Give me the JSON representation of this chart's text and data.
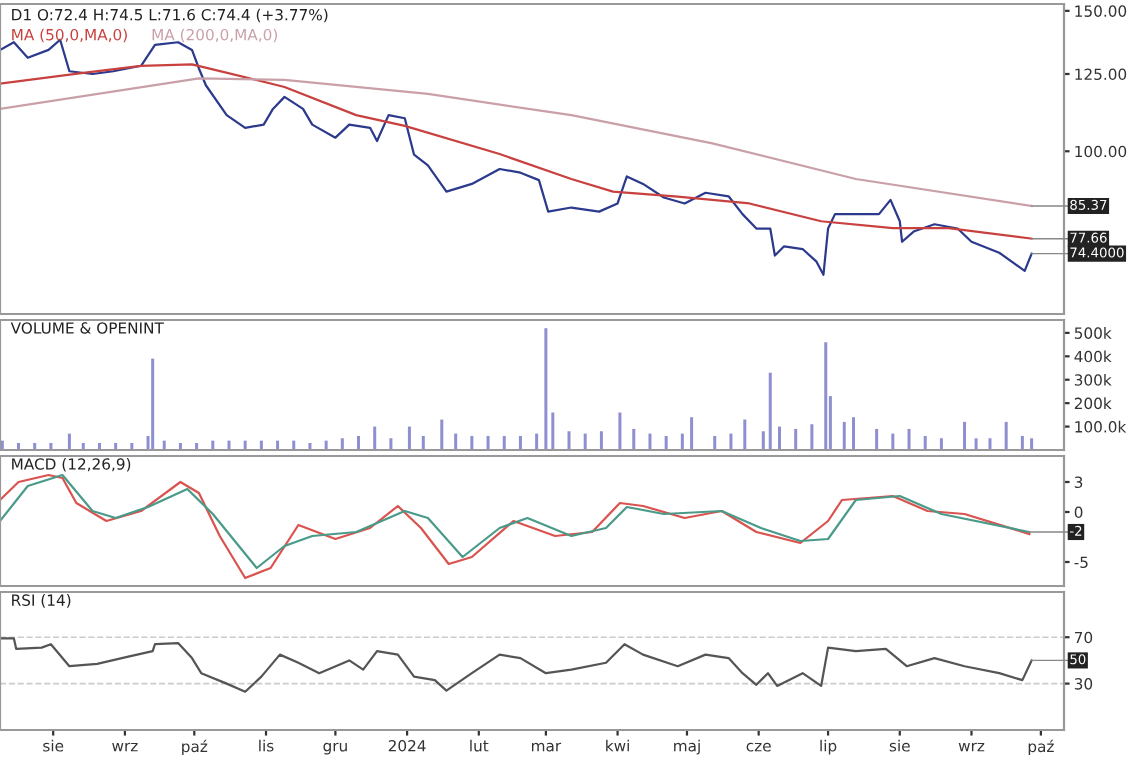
{
  "chart_data": [
    {
      "type": "line",
      "title": "D1 O:72.4 H:74.5 L:71.6 C:74.4 (+3.77%)",
      "log": true,
      "legend": "top left",
      "tick_labels": "y",
      "xlim": [
        "2023-07-09",
        "2024-10-11"
      ],
      "ylim": [
        62.5,
        153
      ],
      "yticks": [
        {
          "value": 100,
          "label": "100.00"
        },
        {
          "value": 125,
          "label": "125.00"
        },
        {
          "value": 150,
          "label": "150.00"
        }
      ],
      "series": [
        {
          "color": "#2b3a8c",
          "x": [
            "2023-07-09",
            "2023-07-15",
            "2023-07-21",
            "2023-07-30",
            "2023-08-04",
            "2023-08-08",
            "2023-08-18",
            "2023-08-27",
            "2023-09-08",
            "2023-09-14",
            "2023-09-24",
            "2023-09-30",
            "2023-10-03",
            "2023-10-06",
            "2023-10-15",
            "2023-10-23",
            "2023-10-31",
            "2023-11-04",
            "2023-11-09",
            "2023-11-17",
            "2023-11-21",
            "2023-12-01",
            "2023-12-07",
            "2023-12-16",
            "2023-12-19",
            "2023-12-24",
            "2023-12-31",
            "2024-01-04",
            "2024-01-10",
            "2024-01-18",
            "2024-01-29",
            "2024-02-10",
            "2024-02-19",
            "2024-02-27",
            "2024-03-02",
            "2024-03-12",
            "2024-03-24",
            "2024-04-01",
            "2024-04-05",
            "2024-04-12",
            "2024-04-21",
            "2024-04-30",
            "2024-05-09",
            "2024-05-19",
            "2024-05-25",
            "2024-05-31",
            "2024-06-06",
            "2024-06-08",
            "2024-06-12",
            "2024-06-20",
            "2024-06-26",
            "2024-06-29",
            "2024-07-01",
            "2024-07-04",
            "2024-07-13",
            "2024-07-23",
            "2024-07-28",
            "2024-08-01",
            "2024-08-02",
            "2024-08-07",
            "2024-08-16",
            "2024-08-26",
            "2024-09-01",
            "2024-09-13",
            "2024-09-24",
            "2024-09-27"
          ],
          "values": [
            134,
            137,
            131,
            134,
            138,
            126,
            125,
            126,
            128,
            136,
            137,
            134,
            127,
            121,
            111,
            107,
            108,
            113,
            117,
            113,
            108,
            104,
            108,
            107,
            103,
            111,
            110,
            99,
            96,
            89,
            91,
            95,
            94,
            92,
            84,
            85,
            84,
            86,
            93,
            91,
            87.5,
            86,
            88.7,
            87.8,
            83.4,
            80,
            80,
            74,
            76,
            75.4,
            72.7,
            70,
            80,
            83.4,
            83.4,
            83.4,
            86.9,
            81.7,
            77,
            79.3,
            81,
            80,
            77,
            74.6,
            70.8,
            74.4
          ]
        },
        {
          "name": "MA (50,0,MA,0)",
          "color": "#c8413f",
          "x": [
            "2023-07-09",
            "2023-08-14",
            "2023-09-08",
            "2023-09-30",
            "2023-10-09",
            "2023-11-09",
            "2023-12-10",
            "2023-12-31",
            "2024-02-10",
            "2024-03-12",
            "2024-03-30",
            "2024-04-27",
            "2024-05-28",
            "2024-06-28",
            "2024-07-29",
            "2024-08-22",
            "2024-09-27"
          ],
          "values": [
            121.6,
            125.4,
            128,
            128.5,
            126.7,
            120.4,
            111,
            107.6,
            99.2,
            92.3,
            89,
            87.7,
            86,
            81.7,
            80.1,
            80.1,
            77.7
          ]
        },
        {
          "name": "MA (200,0,MA,0)",
          "color": "#c9a0a8",
          "x": [
            "2023-07-09",
            "2023-10-03",
            "2023-11-09",
            "2024-01-10",
            "2024-03-12",
            "2024-05-12",
            "2024-07-13",
            "2024-09-27"
          ],
          "values": [
            113,
            123.4,
            122.9,
            118,
            111,
            102.3,
            92.3,
            85.4
          ]
        }
      ],
      "annotations": [
        {
          "text": "85.37",
          "x": "2024-09-27",
          "y": 85.37
        },
        {
          "text": "77.66",
          "x": "2024-09-27",
          "y": 77.66
        },
        {
          "text": "74.4000",
          "x": "2024-09-27",
          "y": 74.4
        }
      ]
    },
    {
      "type": "bar",
      "title": "VOLUME & OPENINT",
      "tick_labels": "y",
      "xlim": [
        "2023-07-09",
        "2024-10-11"
      ],
      "ylim": [
        0,
        555000
      ],
      "yticks": [
        {
          "value": 100000,
          "label": "100.0k"
        },
        {
          "value": 200000,
          "label": "200k"
        },
        {
          "value": 300000,
          "label": "300k"
        },
        {
          "value": 400000,
          "label": "400k"
        },
        {
          "value": 500000,
          "label": "500k"
        }
      ],
      "series": [
        {
          "color": "#8e8fd0",
          "x": [
            "2023-07-10",
            "2023-07-17",
            "2023-07-24",
            "2023-07-31",
            "2023-08-08",
            "2023-08-14",
            "2023-08-21",
            "2023-08-28",
            "2023-09-04",
            "2023-09-11",
            "2023-09-13",
            "2023-09-18",
            "2023-09-25",
            "2023-10-02",
            "2023-10-09",
            "2023-10-16",
            "2023-10-23",
            "2023-10-30",
            "2023-11-06",
            "2023-11-13",
            "2023-11-20",
            "2023-11-27",
            "2023-12-04",
            "2023-12-11",
            "2023-12-18",
            "2023-12-25",
            "2024-01-02",
            "2024-01-08",
            "2024-01-16",
            "2024-01-22",
            "2024-01-29",
            "2024-02-05",
            "2024-02-12",
            "2024-02-19",
            "2024-02-26",
            "2024-03-01",
            "2024-03-04",
            "2024-03-11",
            "2024-03-18",
            "2024-03-25",
            "2024-04-02",
            "2024-04-08",
            "2024-04-15",
            "2024-04-22",
            "2024-04-29",
            "2024-05-03",
            "2024-05-13",
            "2024-05-20",
            "2024-05-26",
            "2024-06-03",
            "2024-06-06",
            "2024-06-10",
            "2024-06-17",
            "2024-06-24",
            "2024-06-30",
            "2024-07-02",
            "2024-07-08",
            "2024-07-12",
            "2024-07-22",
            "2024-07-29",
            "2024-08-05",
            "2024-08-12",
            "2024-08-19",
            "2024-08-29",
            "2024-09-03",
            "2024-09-09",
            "2024-09-16",
            "2024-09-23",
            "2024-09-27"
          ],
          "values": [
            40000,
            30000,
            30000,
            30000,
            70000,
            30000,
            30000,
            30000,
            30000,
            60000,
            390000,
            40000,
            30000,
            30000,
            40000,
            40000,
            40000,
            40000,
            40000,
            40000,
            30000,
            40000,
            50000,
            60000,
            100000,
            50000,
            100000,
            60000,
            130000,
            70000,
            60000,
            60000,
            60000,
            60000,
            70000,
            520000,
            160000,
            80000,
            70000,
            80000,
            160000,
            90000,
            70000,
            60000,
            70000,
            140000,
            60000,
            70000,
            130000,
            80000,
            330000,
            100000,
            90000,
            110000,
            460000,
            230000,
            120000,
            140000,
            90000,
            70000,
            90000,
            60000,
            50000,
            120000,
            50000,
            50000,
            120000,
            60000,
            50000
          ]
        }
      ]
    },
    {
      "type": "line",
      "title": "MACD (12,26,9)",
      "tick_labels": "y",
      "xlim": [
        "2023-07-09",
        "2024-10-11"
      ],
      "ylim": [
        -7.4,
        5.6
      ],
      "yticks": [
        {
          "value": -5,
          "label": "-5"
        },
        0,
        3
      ],
      "series": [
        {
          "color": "#d9534f",
          "x": [
            "2023-07-09",
            "2023-07-17",
            "2023-07-30",
            "2023-08-05",
            "2023-08-11",
            "2023-08-24",
            "2023-09-08",
            "2023-09-25",
            "2023-10-03",
            "2023-10-12",
            "2023-10-23",
            "2023-11-03",
            "2023-11-15",
            "2023-12-01",
            "2023-12-16",
            "2023-12-28",
            "2024-01-07",
            "2024-01-19",
            "2024-01-29",
            "2024-02-16",
            "2024-03-05",
            "2024-03-21",
            "2024-04-02",
            "2024-04-12",
            "2024-04-30",
            "2024-05-16",
            "2024-05-31",
            "2024-06-19",
            "2024-07-01",
            "2024-07-07",
            "2024-07-29",
            "2024-08-13",
            "2024-08-29",
            "2024-09-26"
          ],
          "values": [
            1.2,
            3.0,
            3.7,
            3.4,
            0.9,
            -0.9,
            0.1,
            3.0,
            1.9,
            -2.4,
            -6.6,
            -5.6,
            -1.3,
            -2.7,
            -1.6,
            0.6,
            -1.6,
            -5.2,
            -4.5,
            -0.9,
            -2.4,
            -2.0,
            0.9,
            0.6,
            -0.6,
            0.1,
            -2.0,
            -3.1,
            -0.9,
            1.2,
            1.6,
            0.1,
            -0.2,
            -2.2
          ]
        },
        {
          "color": "#4a9a8a",
          "x": [
            "2023-07-09",
            "2023-07-21",
            "2023-08-05",
            "2023-08-18",
            "2023-08-28",
            "2023-09-11",
            "2023-09-28",
            "2023-10-09",
            "2023-10-28",
            "2023-11-09",
            "2023-11-21",
            "2023-12-10",
            "2023-12-31",
            "2024-01-10",
            "2024-01-25",
            "2024-02-10",
            "2024-02-22",
            "2024-03-12",
            "2024-03-27",
            "2024-04-05",
            "2024-04-21",
            "2024-05-16",
            "2024-06-02",
            "2024-06-19",
            "2024-07-01",
            "2024-07-13",
            "2024-08-01",
            "2024-08-19",
            "2024-09-26"
          ],
          "values": [
            -0.9,
            2.6,
            3.7,
            0.1,
            -0.6,
            0.5,
            2.3,
            -0.2,
            -5.6,
            -3.4,
            -2.4,
            -2.0,
            0.1,
            -0.6,
            -4.5,
            -1.6,
            -0.6,
            -2.4,
            -1.6,
            0.5,
            -0.2,
            0.1,
            -1.6,
            -2.9,
            -2.7,
            1.2,
            1.6,
            -0.2,
            -2.0
          ]
        }
      ],
      "annotations": [
        {
          "text": "-2",
          "x": "2024-09-26",
          "y": -2
        }
      ]
    },
    {
      "type": "line",
      "title": "RSI (14)",
      "grid": "y",
      "xlim": [
        "2023-07-09",
        "2024-10-11"
      ],
      "ylim": [
        -10,
        109
      ],
      "xticks": [
        {
          "value": "2023-08-01",
          "label": "sie"
        },
        {
          "value": "2023-09-01",
          "label": "wrz"
        },
        {
          "value": "2023-10-01",
          "label": "paź"
        },
        {
          "value": "2023-11-01",
          "label": "lis"
        },
        {
          "value": "2023-12-01",
          "label": "gru"
        },
        {
          "value": "2024-01-01",
          "label": "2024"
        },
        {
          "value": "2024-02-01",
          "label": "lut"
        },
        {
          "value": "2024-03-01",
          "label": "mar"
        },
        {
          "value": "2024-04-01",
          "label": "kwi"
        },
        {
          "value": "2024-05-01",
          "label": "maj"
        },
        {
          "value": "2024-06-01",
          "label": "cze"
        },
        {
          "value": "2024-07-01",
          "label": "lip"
        },
        {
          "value": "2024-08-01",
          "label": "sie"
        },
        {
          "value": "2024-09-01",
          "label": "wrz"
        },
        {
          "value": "2024-10-01",
          "label": "paź"
        }
      ],
      "yticks": [
        30,
        70
      ],
      "series": [
        {
          "color": "#555555",
          "x": [
            "2023-07-09",
            "2023-07-15",
            "2023-07-16",
            "2023-07-27",
            "2023-07-31",
            "2023-08-08",
            "2023-08-20",
            "2023-09-02",
            "2023-09-13",
            "2023-09-14",
            "2023-09-24",
            "2023-09-30",
            "2023-10-04",
            "2023-10-15",
            "2023-10-23",
            "2023-10-30",
            "2023-11-07",
            "2023-11-15",
            "2023-11-24",
            "2023-12-07",
            "2023-12-13",
            "2023-12-19",
            "2023-12-28",
            "2024-01-04",
            "2024-01-13",
            "2024-01-18",
            "2024-01-29",
            "2024-02-10",
            "2024-02-19",
            "2024-03-01",
            "2024-03-12",
            "2024-03-27",
            "2024-04-04",
            "2024-04-12",
            "2024-04-27",
            "2024-05-09",
            "2024-05-19",
            "2024-05-25",
            "2024-05-31",
            "2024-06-05",
            "2024-06-09",
            "2024-06-20",
            "2024-06-28",
            "2024-07-01",
            "2024-07-13",
            "2024-07-26",
            "2024-08-04",
            "2024-08-16",
            "2024-08-29",
            "2024-09-13",
            "2024-09-23",
            "2024-09-27"
          ],
          "values": [
            69,
            69,
            60,
            61,
            64,
            45,
            47,
            53,
            58,
            64,
            65,
            52,
            39,
            30,
            23,
            36,
            55,
            48,
            39,
            50,
            42,
            58,
            55,
            36,
            33,
            24,
            39,
            55,
            52,
            39,
            42,
            48,
            64,
            55,
            45,
            55,
            52,
            39,
            29,
            39,
            28,
            39,
            28,
            61,
            58,
            60,
            45,
            52,
            45,
            39,
            33,
            50
          ]
        }
      ],
      "annotations": [
        {
          "text": "50",
          "x": "2024-09-27",
          "y": 50
        }
      ]
    }
  ]
}
